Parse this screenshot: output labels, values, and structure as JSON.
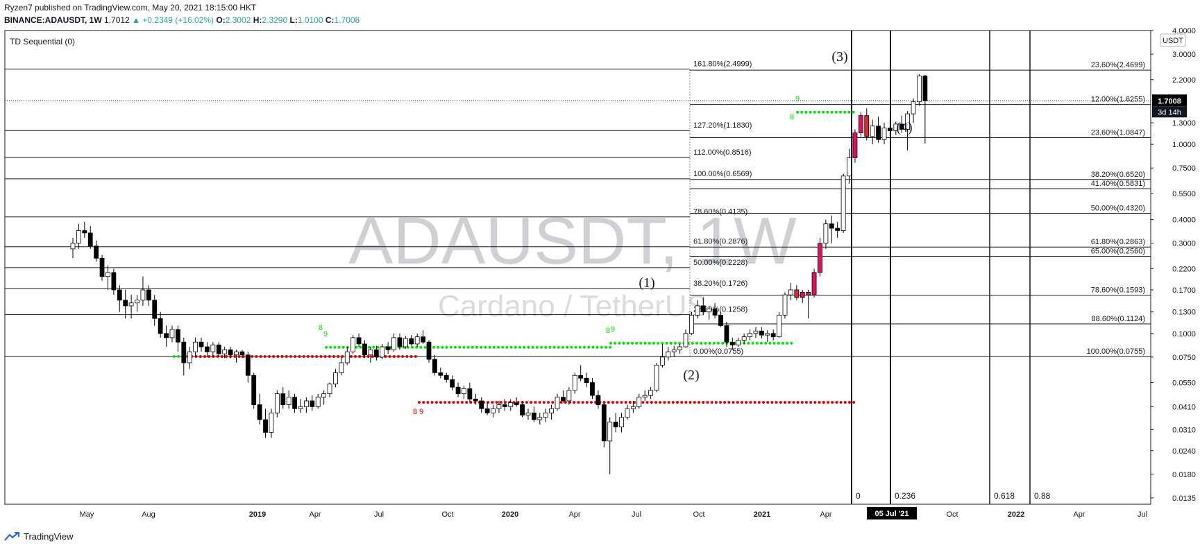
{
  "header": {
    "line1": "Ryzen7 published on TradingView.com, May 20, 2021 18:15:00 HKT",
    "symbol": "BINANCE:ADAUSDT, 1W",
    "last": "1.7012",
    "change": "▲ +0.2349 (+16.02%)",
    "o_label": "O:",
    "o": "2.3002",
    "h_label": "H:",
    "h": "2.3290",
    "l_label": "L:",
    "l": "1.0100",
    "c_label": "C:",
    "c": "1.7008"
  },
  "indicator": "TD Sequential (0)",
  "watermark": {
    "symbol": "ADAUSDT, 1W",
    "name": "Cardano / TetherUS"
  },
  "currency_label": "USDT",
  "price_badge": {
    "price": "1.7008",
    "countdown": "3d 14h"
  },
  "footer": {
    "brand": "TradingView"
  },
  "colors": {
    "up": "#ffffff",
    "down": "#000000",
    "td_green": "#00e600",
    "td_red": "#e60000",
    "td_buy_candle": "#e0115f"
  },
  "chart_data": {
    "type": "candlestick",
    "y_scale": "log",
    "ylim": [
      0.0125,
      4.0
    ],
    "y_ticks": [
      "4.0000",
      "3.0000",
      "2.2000",
      "1.7008",
      "1.3000",
      "1.0000",
      "0.7500",
      "0.5500",
      "0.4000",
      "0.3000",
      "0.2200",
      "0.1700",
      "0.1300",
      "0.1000",
      "0.0750",
      "0.0550",
      "0.0410",
      "0.0310",
      "0.0240",
      "0.0180",
      "0.0135"
    ],
    "x_ticks": [
      "May",
      "Aug",
      "2019",
      "Apr",
      "Jul",
      "Oct",
      "2020",
      "Apr",
      "Jul",
      "Oct",
      "2021",
      "Apr",
      "05 Jul '21",
      "Oct",
      "2022",
      "Apr",
      "Jul"
    ],
    "x_highlight": "05 Jul '21",
    "fib_extension_left": [
      {
        "label": "161.80%(2.4999)",
        "price": 2.4999
      },
      {
        "label": "127.20%(1.1830)",
        "price": 1.183
      },
      {
        "label": "112.00%(0.8516)",
        "price": 0.8516
      },
      {
        "label": "100.00%(0.6569)",
        "price": 0.6569
      },
      {
        "label": "78.60%(0.4135)",
        "price": 0.4135
      },
      {
        "label": "61.80%(0.2876)",
        "price": 0.2876
      },
      {
        "label": "50.00%(0.2228)",
        "price": 0.2228
      },
      {
        "label": "38.20%(0.1726)",
        "price": 0.1726
      },
      {
        "label": "23.60%(0.1258)",
        "price": 0.1258
      },
      {
        "label": "0.00%(0.0755)",
        "price": 0.0755
      }
    ],
    "fib_retracement_right": [
      {
        "label": "23.60%(2.4699)",
        "price": 2.4699
      },
      {
        "label": "12.00%(1.6255)",
        "price": 1.6255
      },
      {
        "label": "23.60%(1.0847)",
        "price": 1.0847
      },
      {
        "label": "38.20%(0.6520)",
        "price": 0.652
      },
      {
        "label": "41.40%(0.5831)",
        "price": 0.5831
      },
      {
        "label": "50.00%(0.4320)",
        "price": 0.432
      },
      {
        "label": "61.80%(0.2863)",
        "price": 0.2863
      },
      {
        "label": "65.00%(0.2560)",
        "price": 0.256
      },
      {
        "label": "78.60%(0.1593)",
        "price": 0.1593
      },
      {
        "label": "88.60%(0.1124)",
        "price": 0.1124
      },
      {
        "label": "100.00%(0.0755)",
        "price": 0.0755
      }
    ],
    "wave_labels": [
      "(1)",
      "(2)",
      "(3)",
      "(4)"
    ],
    "fib_time_zones": [
      "0",
      "0.236",
      "0.618",
      "0.88"
    ],
    "td_counts": [
      "8",
      "9",
      "8",
      "9",
      "8",
      "9",
      "8",
      "9"
    ],
    "td_support_levels": [
      0.0755,
      0.0845,
      0.0888,
      1.48
    ],
    "td_resistance_levels": [
      0.0755,
      0.0432
    ],
    "candles": [
      [
        0.28,
        0.32,
        0.25,
        0.3
      ],
      [
        0.3,
        0.38,
        0.28,
        0.35
      ],
      [
        0.35,
        0.39,
        0.32,
        0.34
      ],
      [
        0.34,
        0.37,
        0.28,
        0.29
      ],
      [
        0.29,
        0.31,
        0.24,
        0.25
      ],
      [
        0.25,
        0.26,
        0.19,
        0.2
      ],
      [
        0.2,
        0.23,
        0.17,
        0.21
      ],
      [
        0.21,
        0.22,
        0.16,
        0.17
      ],
      [
        0.17,
        0.18,
        0.13,
        0.15
      ],
      [
        0.15,
        0.17,
        0.12,
        0.14
      ],
      [
        0.14,
        0.16,
        0.12,
        0.145
      ],
      [
        0.145,
        0.16,
        0.13,
        0.15
      ],
      [
        0.15,
        0.2,
        0.14,
        0.17
      ],
      [
        0.17,
        0.18,
        0.14,
        0.15
      ],
      [
        0.15,
        0.16,
        0.11,
        0.12
      ],
      [
        0.12,
        0.13,
        0.095,
        0.1
      ],
      [
        0.1,
        0.11,
        0.085,
        0.095
      ],
      [
        0.095,
        0.11,
        0.09,
        0.105
      ],
      [
        0.105,
        0.11,
        0.08,
        0.09
      ],
      [
        0.09,
        0.095,
        0.06,
        0.07
      ],
      [
        0.07,
        0.085,
        0.065,
        0.08
      ],
      [
        0.08,
        0.095,
        0.075,
        0.09
      ],
      [
        0.09,
        0.095,
        0.08,
        0.085
      ],
      [
        0.085,
        0.09,
        0.075,
        0.08
      ],
      [
        0.08,
        0.09,
        0.075,
        0.087
      ],
      [
        0.087,
        0.09,
        0.075,
        0.078
      ],
      [
        0.078,
        0.085,
        0.074,
        0.082
      ],
      [
        0.082,
        0.085,
        0.074,
        0.077
      ],
      [
        0.077,
        0.082,
        0.07,
        0.08
      ],
      [
        0.08,
        0.082,
        0.074,
        0.077
      ],
      [
        0.077,
        0.08,
        0.055,
        0.06
      ],
      [
        0.06,
        0.062,
        0.04,
        0.042
      ],
      [
        0.042,
        0.048,
        0.033,
        0.035
      ],
      [
        0.035,
        0.04,
        0.028,
        0.03
      ],
      [
        0.03,
        0.04,
        0.028,
        0.038
      ],
      [
        0.038,
        0.05,
        0.036,
        0.048
      ],
      [
        0.048,
        0.052,
        0.04,
        0.042
      ],
      [
        0.042,
        0.05,
        0.04,
        0.046
      ],
      [
        0.046,
        0.048,
        0.038,
        0.04
      ],
      [
        0.04,
        0.045,
        0.038,
        0.041
      ],
      [
        0.041,
        0.046,
        0.038,
        0.044
      ],
      [
        0.044,
        0.047,
        0.039,
        0.041
      ],
      [
        0.041,
        0.048,
        0.04,
        0.046
      ],
      [
        0.046,
        0.05,
        0.042,
        0.048
      ],
      [
        0.048,
        0.055,
        0.046,
        0.054
      ],
      [
        0.054,
        0.065,
        0.052,
        0.062
      ],
      [
        0.062,
        0.075,
        0.06,
        0.07
      ],
      [
        0.07,
        0.085,
        0.068,
        0.08
      ],
      [
        0.08,
        0.098,
        0.078,
        0.095
      ],
      [
        0.095,
        0.1,
        0.085,
        0.088
      ],
      [
        0.088,
        0.092,
        0.074,
        0.077
      ],
      [
        0.077,
        0.085,
        0.07,
        0.082
      ],
      [
        0.082,
        0.086,
        0.072,
        0.075
      ],
      [
        0.075,
        0.088,
        0.073,
        0.085
      ],
      [
        0.085,
        0.09,
        0.078,
        0.082
      ],
      [
        0.082,
        0.1,
        0.08,
        0.095
      ],
      [
        0.095,
        0.1,
        0.082,
        0.085
      ],
      [
        0.085,
        0.097,
        0.083,
        0.094
      ],
      [
        0.094,
        0.098,
        0.086,
        0.088
      ],
      [
        0.088,
        0.1,
        0.085,
        0.096
      ],
      [
        0.096,
        0.104,
        0.088,
        0.09
      ],
      [
        0.09,
        0.092,
        0.07,
        0.073
      ],
      [
        0.073,
        0.077,
        0.06,
        0.062
      ],
      [
        0.062,
        0.066,
        0.058,
        0.06
      ],
      [
        0.06,
        0.062,
        0.055,
        0.057
      ],
      [
        0.057,
        0.06,
        0.05,
        0.052
      ],
      [
        0.052,
        0.055,
        0.046,
        0.048
      ],
      [
        0.048,
        0.053,
        0.045,
        0.051
      ],
      [
        0.051,
        0.055,
        0.043,
        0.045
      ],
      [
        0.045,
        0.048,
        0.042,
        0.044
      ],
      [
        0.044,
        0.046,
        0.038,
        0.04
      ],
      [
        0.04,
        0.043,
        0.037,
        0.038
      ],
      [
        0.038,
        0.042,
        0.036,
        0.04
      ],
      [
        0.04,
        0.044,
        0.038,
        0.042
      ],
      [
        0.042,
        0.045,
        0.039,
        0.041
      ],
      [
        0.041,
        0.045,
        0.039,
        0.043
      ],
      [
        0.043,
        0.046,
        0.041,
        0.042
      ],
      [
        0.042,
        0.044,
        0.036,
        0.037
      ],
      [
        0.037,
        0.04,
        0.035,
        0.038
      ],
      [
        0.038,
        0.041,
        0.034,
        0.035
      ],
      [
        0.035,
        0.038,
        0.033,
        0.036
      ],
      [
        0.036,
        0.04,
        0.034,
        0.038
      ],
      [
        0.038,
        0.042,
        0.035,
        0.04
      ],
      [
        0.04,
        0.048,
        0.039,
        0.046
      ],
      [
        0.046,
        0.05,
        0.043,
        0.044
      ],
      [
        0.044,
        0.052,
        0.042,
        0.05
      ],
      [
        0.05,
        0.062,
        0.048,
        0.06
      ],
      [
        0.06,
        0.068,
        0.056,
        0.058
      ],
      [
        0.058,
        0.062,
        0.052,
        0.055
      ],
      [
        0.055,
        0.058,
        0.045,
        0.047
      ],
      [
        0.047,
        0.05,
        0.04,
        0.042
      ],
      [
        0.042,
        0.043,
        0.025,
        0.027
      ],
      [
        0.027,
        0.036,
        0.018,
        0.034
      ],
      [
        0.034,
        0.038,
        0.03,
        0.032
      ],
      [
        0.032,
        0.038,
        0.03,
        0.036
      ],
      [
        0.036,
        0.042,
        0.035,
        0.04
      ],
      [
        0.04,
        0.044,
        0.038,
        0.041
      ],
      [
        0.041,
        0.048,
        0.04,
        0.046
      ],
      [
        0.046,
        0.05,
        0.044,
        0.047
      ],
      [
        0.047,
        0.052,
        0.045,
        0.05
      ],
      [
        0.05,
        0.07,
        0.049,
        0.068
      ],
      [
        0.068,
        0.088,
        0.066,
        0.075
      ],
      [
        0.075,
        0.085,
        0.072,
        0.08
      ],
      [
        0.08,
        0.086,
        0.075,
        0.082
      ],
      [
        0.082,
        0.088,
        0.078,
        0.085
      ],
      [
        0.085,
        0.105,
        0.084,
        0.1
      ],
      [
        0.1,
        0.13,
        0.098,
        0.125
      ],
      [
        0.125,
        0.15,
        0.12,
        0.14
      ],
      [
        0.14,
        0.155,
        0.125,
        0.13
      ],
      [
        0.13,
        0.14,
        0.118,
        0.135
      ],
      [
        0.135,
        0.145,
        0.12,
        0.125
      ],
      [
        0.125,
        0.13,
        0.108,
        0.11
      ],
      [
        0.11,
        0.115,
        0.085,
        0.09
      ],
      [
        0.09,
        0.095,
        0.082,
        0.087
      ],
      [
        0.087,
        0.095,
        0.085,
        0.092
      ],
      [
        0.092,
        0.1,
        0.088,
        0.096
      ],
      [
        0.096,
        0.105,
        0.092,
        0.1
      ],
      [
        0.1,
        0.108,
        0.095,
        0.103
      ],
      [
        0.103,
        0.108,
        0.094,
        0.098
      ],
      [
        0.098,
        0.104,
        0.09,
        0.1
      ],
      [
        0.1,
        0.105,
        0.092,
        0.096
      ],
      [
        0.096,
        0.13,
        0.095,
        0.125
      ],
      [
        0.125,
        0.165,
        0.12,
        0.16
      ],
      [
        0.16,
        0.185,
        0.15,
        0.17
      ],
      [
        0.17,
        0.18,
        0.15,
        0.155
      ],
      [
        0.155,
        0.17,
        0.145,
        0.165
      ],
      [
        0.165,
        0.17,
        0.12,
        0.16
      ],
      [
        0.16,
        0.22,
        0.155,
        0.21
      ],
      [
        0.21,
        0.32,
        0.2,
        0.3
      ],
      [
        0.3,
        0.4,
        0.28,
        0.38
      ],
      [
        0.38,
        0.42,
        0.3,
        0.36
      ],
      [
        0.36,
        0.39,
        0.32,
        0.35
      ],
      [
        0.35,
        0.7,
        0.34,
        0.68
      ],
      [
        0.68,
        0.95,
        0.62,
        0.85
      ],
      [
        0.85,
        1.2,
        0.8,
        1.15
      ],
      [
        1.15,
        1.48,
        1.1,
        1.42
      ],
      [
        1.42,
        1.55,
        1.05,
        1.1
      ],
      [
        1.1,
        1.35,
        1.0,
        1.25
      ],
      [
        1.25,
        1.4,
        1.02,
        1.06
      ],
      [
        1.06,
        1.3,
        1.0,
        1.22
      ],
      [
        1.22,
        1.35,
        1.12,
        1.18
      ],
      [
        1.18,
        1.32,
        1.12,
        1.28
      ],
      [
        1.28,
        1.42,
        1.15,
        1.2
      ],
      [
        1.2,
        1.5,
        0.93,
        1.45
      ],
      [
        1.45,
        1.75,
        1.3,
        1.68
      ],
      [
        1.68,
        2.35,
        1.6,
        2.3
      ],
      [
        2.3,
        2.33,
        1.01,
        1.7008
      ]
    ]
  }
}
